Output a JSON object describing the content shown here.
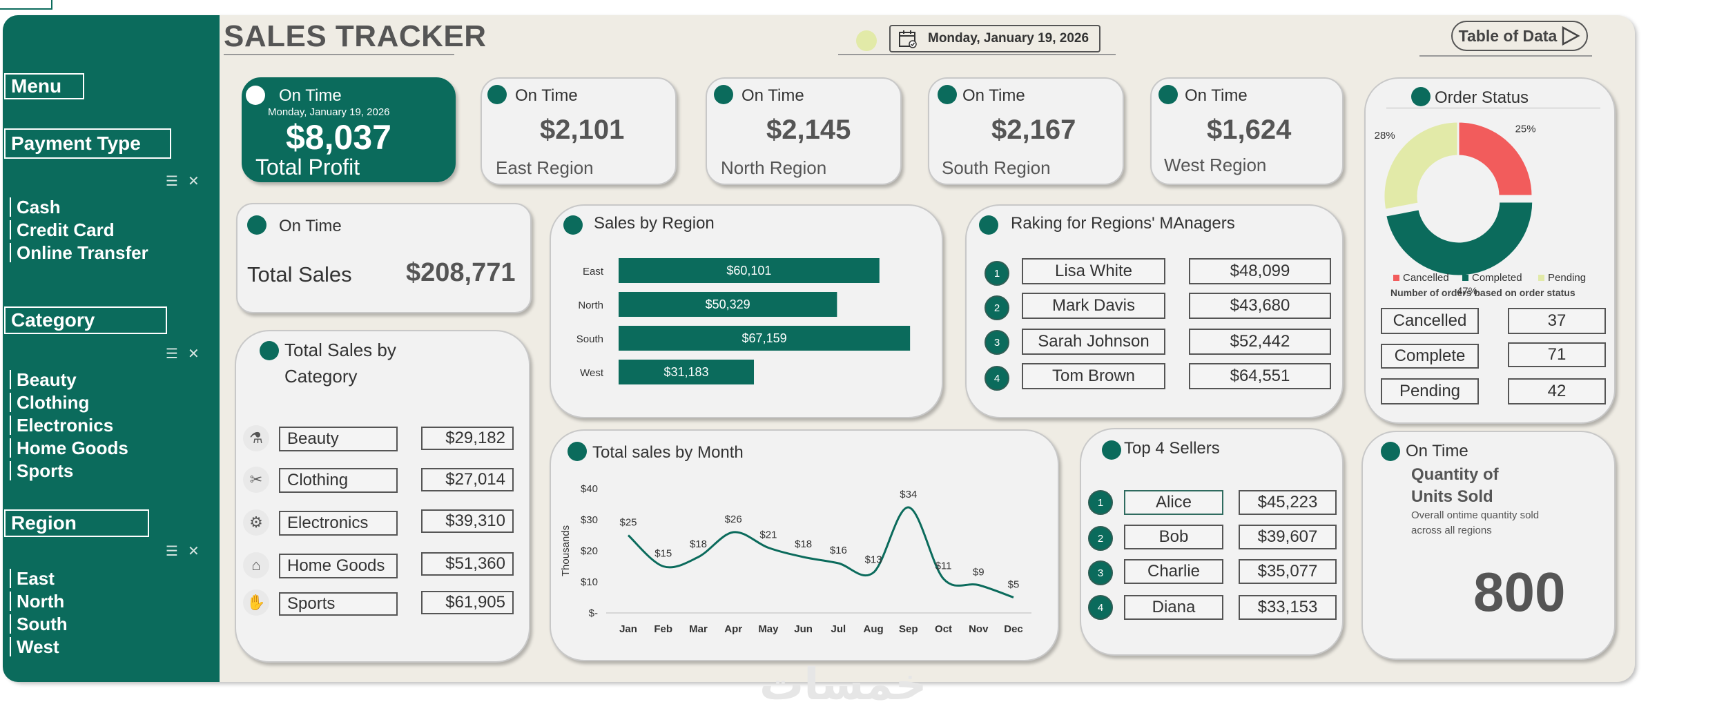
{
  "sidebar": {
    "menu_label": "Menu",
    "payment": {
      "title": "Payment Type",
      "items": [
        "Cash",
        "Credit Card",
        "Online Transfer"
      ]
    },
    "category": {
      "title": "Category",
      "items": [
        "Beauty",
        "Clothing",
        "Electronics",
        "Home Goods",
        "Sports"
      ]
    },
    "region": {
      "title": "Region",
      "items": [
        "East",
        "North",
        "South",
        "West"
      ]
    }
  },
  "header": {
    "title": "SALES TRACKER",
    "date": "Monday, January 19, 2026",
    "table_button": "Table of Data"
  },
  "kpis": {
    "profit": {
      "status": "On Time",
      "date": "Monday, January 19, 2026",
      "value": "$8,037",
      "label": "Total Profit"
    },
    "east": {
      "status": "On Time",
      "value": "$2,101",
      "label": "East Region"
    },
    "north": {
      "status": "On Time",
      "value": "$2,145",
      "label": "North Region"
    },
    "south": {
      "status": "On Time",
      "value": "$2,167",
      "label": "South Region"
    },
    "west": {
      "status": "On Time",
      "value": "$1,624",
      "label": "West Region"
    }
  },
  "total_sales": {
    "status": "On Time",
    "label": "Total Sales",
    "value": "$208,771"
  },
  "category_sales": {
    "title_line1": "Total Sales by",
    "title_line2": "Category",
    "rows": [
      {
        "name": "Beauty",
        "value": "$29,182",
        "icon": "beauty-icon"
      },
      {
        "name": "Clothing",
        "value": "$27,014",
        "icon": "clothing-icon"
      },
      {
        "name": "Electronics",
        "value": "$39,310",
        "icon": "electronics-icon"
      },
      {
        "name": "Home Goods",
        "value": "$51,360",
        "icon": "home-icon"
      },
      {
        "name": "Sports",
        "value": "$61,905",
        "icon": "sports-icon"
      }
    ]
  },
  "managers": {
    "title": "Raking for Regions' MAnagers",
    "rows": [
      {
        "rank": "1",
        "name": "Lisa White",
        "value": "$48,099"
      },
      {
        "rank": "2",
        "name": "Mark Davis",
        "value": "$43,680"
      },
      {
        "rank": "3",
        "name": "Sarah Johnson",
        "value": "$52,442"
      },
      {
        "rank": "4",
        "name": "Tom Brown",
        "value": "$64,551"
      }
    ]
  },
  "sellers": {
    "title": "Top 4 Sellers",
    "rows": [
      {
        "rank": "1",
        "name": "Alice",
        "value": "$45,223"
      },
      {
        "rank": "2",
        "name": "Bob",
        "value": "$39,607"
      },
      {
        "rank": "3",
        "name": "Charlie",
        "value": "$35,077"
      },
      {
        "rank": "4",
        "name": "Diana",
        "value": "$33,153"
      }
    ]
  },
  "order_status": {
    "title": "Order Status",
    "subtitle": "Number of orders based on order status",
    "rows": [
      {
        "name": "Cancelled",
        "value": "37"
      },
      {
        "name": "Complete",
        "value": "71"
      },
      {
        "name": "Pending",
        "value": "42"
      }
    ]
  },
  "quantity": {
    "status": "On Time",
    "title_line1": "Quantity of",
    "title_line2": "Units Sold",
    "desc_line1": "Overall ontime quantity sold",
    "desc_line2": "across all regions",
    "value": "800"
  },
  "colors": {
    "brand": "#0b6b5c",
    "cancelled": "#f25c5c",
    "pending": "#e2eaa8",
    "background": "#efece4"
  },
  "watermark": "خمسات",
  "chart_data": [
    {
      "type": "bar",
      "orientation": "horizontal",
      "title": "Sales by Region",
      "categories": [
        "East",
        "North",
        "South",
        "West"
      ],
      "values": [
        60101,
        50329,
        67159,
        31183
      ],
      "labels": [
        "$60,101",
        "$50,329",
        "$67,159",
        "$31,183"
      ],
      "xlim": [
        0,
        70000
      ]
    },
    {
      "type": "line",
      "title": "Total sales by Month",
      "ylabel": "Thousands",
      "x": [
        "Jan",
        "Feb",
        "Mar",
        "Apr",
        "May",
        "Jun",
        "Jul",
        "Aug",
        "Sep",
        "Oct",
        "Nov",
        "Dec"
      ],
      "values": [
        25,
        15,
        18,
        26,
        21,
        18,
        16,
        13,
        34,
        11,
        9,
        5
      ],
      "labels": [
        "$25",
        "$15",
        "$18",
        "$26",
        "$21",
        "$18",
        "$16",
        "$13",
        "$34",
        "$11",
        "$9",
        "$5"
      ],
      "yticks": [
        "$-",
        "$10",
        "$20",
        "$30",
        "$40"
      ],
      "ylim": [
        0,
        40
      ]
    },
    {
      "type": "pie",
      "style": "donut",
      "title": "Order Status",
      "categories": [
        "Cancelled",
        "Completed",
        "Pending"
      ],
      "values": [
        25,
        47,
        28
      ],
      "labels": [
        "25%",
        "47%",
        "28%"
      ],
      "legend": "bottom"
    }
  ]
}
